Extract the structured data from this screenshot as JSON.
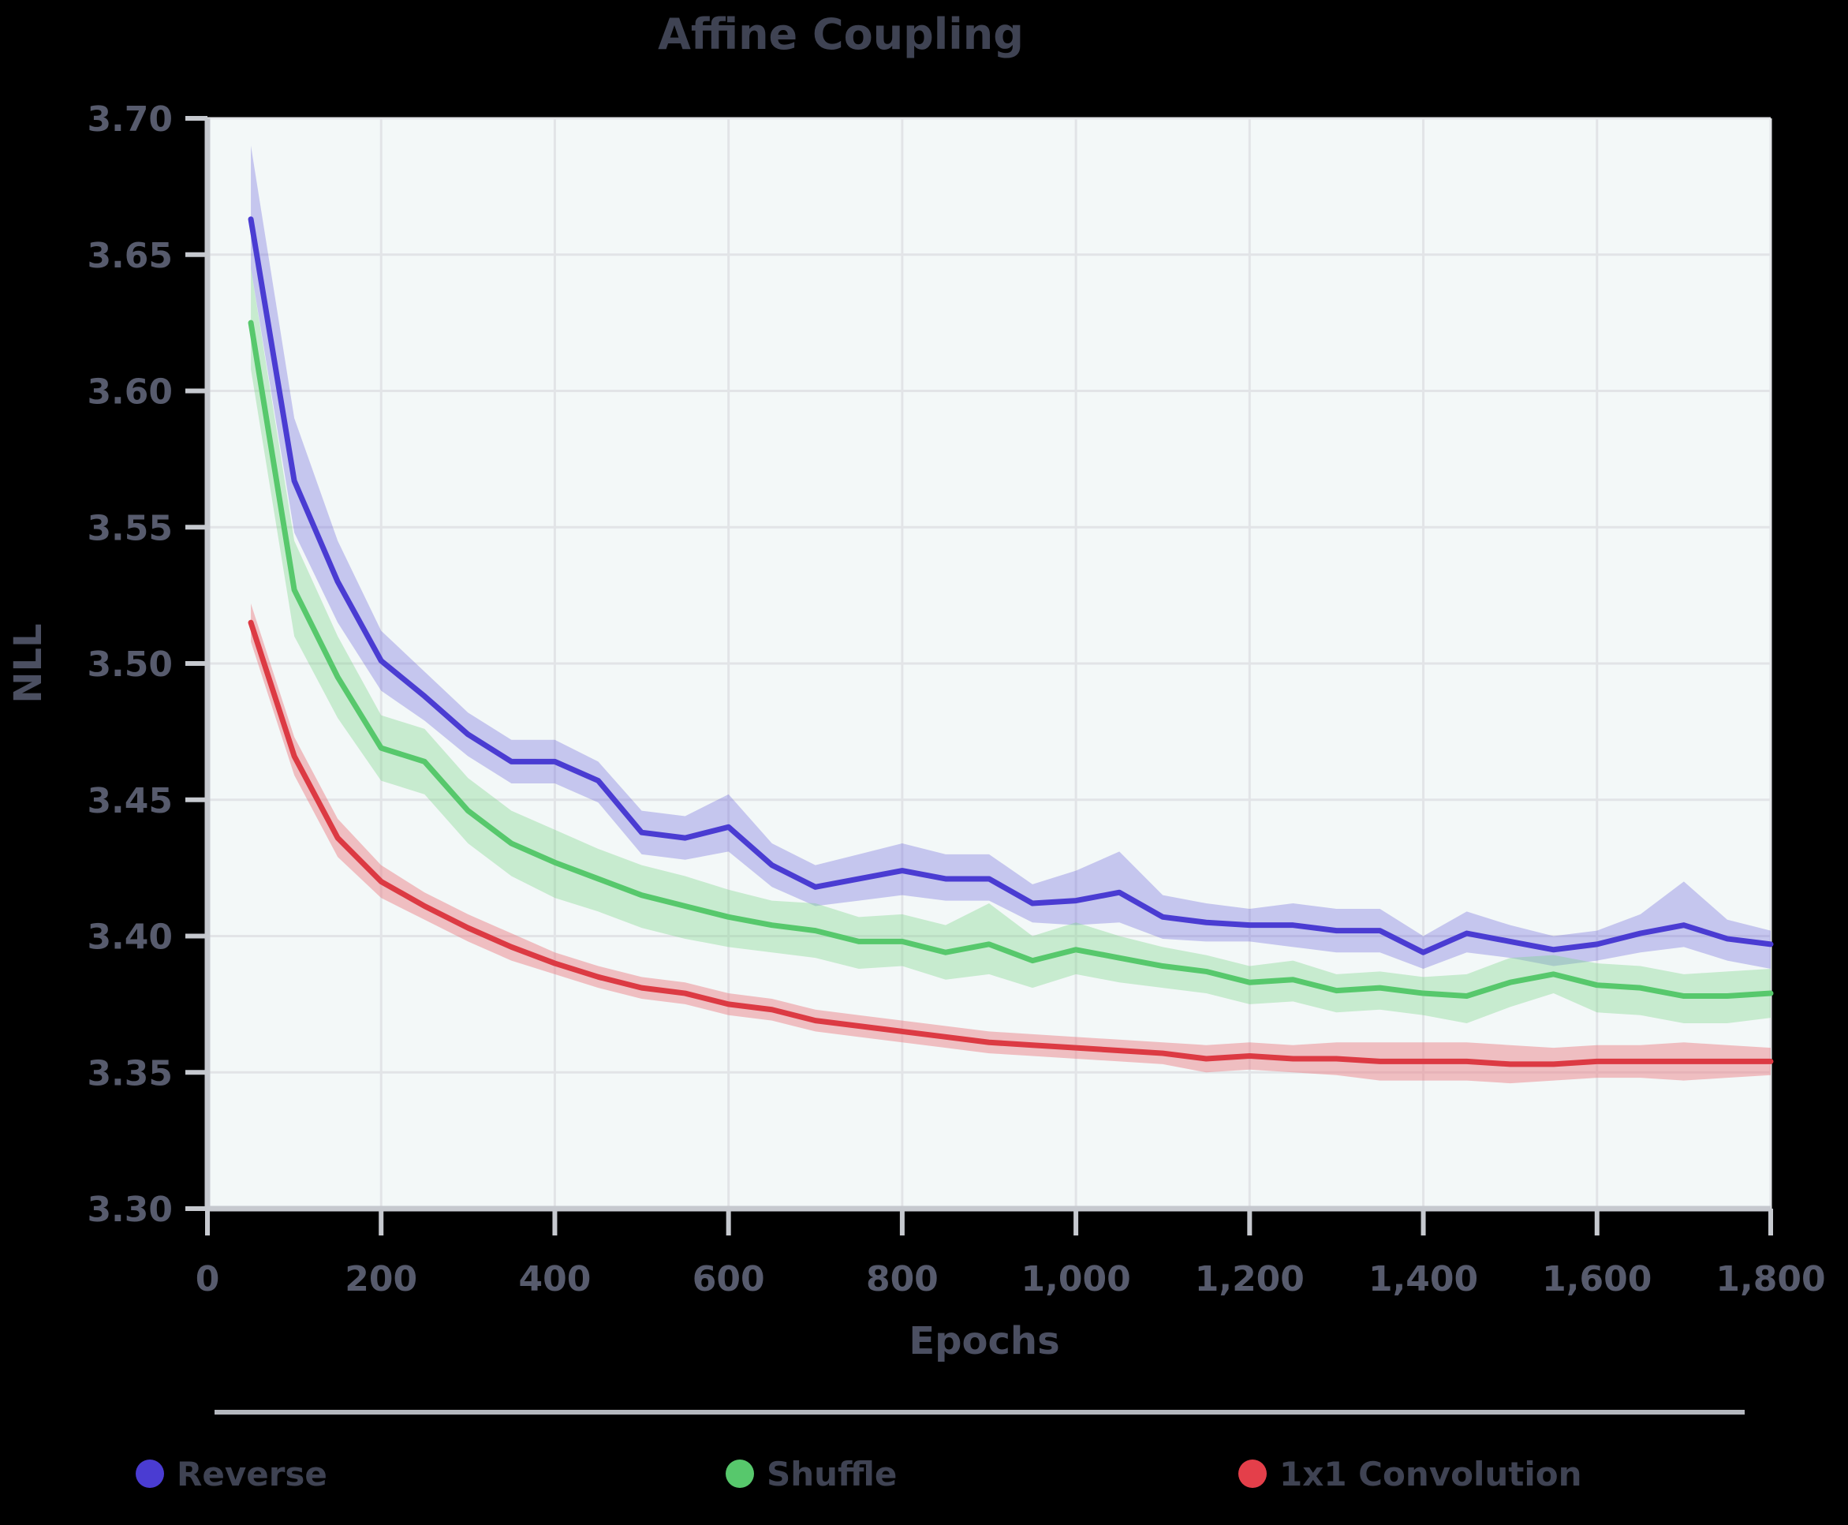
{
  "title": "Affine Coupling",
  "axes": {
    "x_label": "Epochs",
    "y_label": "NLL",
    "x_tick_labels": [
      "0",
      "200",
      "400",
      "600",
      "800",
      "1,000",
      "1,200",
      "1,400",
      "1,600",
      "1,800"
    ],
    "y_tick_labels": [
      "3.70",
      "3.65",
      "3.60",
      "3.55",
      "3.50",
      "3.45",
      "3.40",
      "3.35",
      "3.30"
    ]
  },
  "legend": {
    "items": [
      {
        "label": "Reverse",
        "color": "#4a3cd2"
      },
      {
        "label": "Shuffle",
        "color": "#57c86c"
      },
      {
        "label": "1x1 Convolution",
        "color": "#e43f4a"
      }
    ]
  },
  "colors": {
    "page_background": "#000000",
    "plot_background": "#f3f8f8",
    "gridline": "#e2e4e7",
    "spine": "#c6c9cf",
    "legend_divider": "#b5b8bf"
  },
  "chart_data": {
    "type": "line",
    "title": "Affine Coupling",
    "xlabel": "Epochs",
    "ylabel": "NLL",
    "xlim": [
      0,
      1800
    ],
    "ylim": [
      3.3,
      3.7
    ],
    "grid": true,
    "legend_position": "bottom",
    "x_tick_values": [
      0,
      200,
      400,
      600,
      800,
      1000,
      1200,
      1400,
      1600,
      1800
    ],
    "y_tick_values": [
      3.7,
      3.65,
      3.6,
      3.55,
      3.5,
      3.45,
      3.4,
      3.35,
      3.3
    ],
    "x": [
      50,
      100,
      150,
      200,
      250,
      300,
      350,
      400,
      450,
      500,
      550,
      600,
      650,
      700,
      750,
      800,
      850,
      900,
      950,
      1000,
      1050,
      1100,
      1150,
      1200,
      1250,
      1300,
      1350,
      1400,
      1450,
      1500,
      1550,
      1600,
      1650,
      1700,
      1750,
      1800
    ],
    "series": [
      {
        "name": "Reverse",
        "color": "#4a3cd2",
        "band_color": "rgba(101,92,218,0.32)",
        "values": [
          3.663,
          3.567,
          3.53,
          3.501,
          3.488,
          3.474,
          3.464,
          3.464,
          3.457,
          3.438,
          3.436,
          3.44,
          3.426,
          3.418,
          3.421,
          3.424,
          3.421,
          3.421,
          3.412,
          3.413,
          3.416,
          3.407,
          3.405,
          3.404,
          3.404,
          3.402,
          3.402,
          3.394,
          3.401,
          3.398,
          3.395,
          3.397,
          3.401,
          3.404,
          3.399,
          3.397
        ],
        "band_upper": [
          3.69,
          3.59,
          3.545,
          3.512,
          3.497,
          3.482,
          3.472,
          3.472,
          3.464,
          3.446,
          3.444,
          3.452,
          3.434,
          3.426,
          3.43,
          3.434,
          3.43,
          3.43,
          3.419,
          3.424,
          3.431,
          3.415,
          3.412,
          3.41,
          3.412,
          3.41,
          3.41,
          3.4,
          3.409,
          3.404,
          3.4,
          3.402,
          3.408,
          3.42,
          3.406,
          3.402
        ],
        "band_lower": [
          3.645,
          3.548,
          3.515,
          3.49,
          3.479,
          3.466,
          3.456,
          3.456,
          3.449,
          3.43,
          3.428,
          3.431,
          3.418,
          3.411,
          3.413,
          3.415,
          3.413,
          3.413,
          3.405,
          3.404,
          3.405,
          3.399,
          3.398,
          3.398,
          3.396,
          3.394,
          3.394,
          3.388,
          3.394,
          3.392,
          3.389,
          3.391,
          3.394,
          3.396,
          3.391,
          3.388
        ]
      },
      {
        "name": "Shuffle",
        "color": "#57c86c",
        "band_color": "rgba(118,213,133,0.35)",
        "values": [
          3.625,
          3.527,
          3.495,
          3.469,
          3.464,
          3.446,
          3.434,
          3.427,
          3.421,
          3.415,
          3.411,
          3.407,
          3.404,
          3.402,
          3.398,
          3.398,
          3.394,
          3.397,
          3.391,
          3.395,
          3.392,
          3.389,
          3.387,
          3.383,
          3.384,
          3.38,
          3.381,
          3.379,
          3.378,
          3.383,
          3.386,
          3.382,
          3.381,
          3.378,
          3.378,
          3.379
        ],
        "band_upper": [
          3.645,
          3.545,
          3.51,
          3.481,
          3.476,
          3.458,
          3.446,
          3.439,
          3.432,
          3.426,
          3.422,
          3.417,
          3.413,
          3.412,
          3.407,
          3.408,
          3.404,
          3.412,
          3.4,
          3.405,
          3.4,
          3.396,
          3.393,
          3.389,
          3.391,
          3.386,
          3.387,
          3.385,
          3.386,
          3.392,
          3.393,
          3.39,
          3.389,
          3.386,
          3.387,
          3.388
        ],
        "band_lower": [
          3.608,
          3.51,
          3.48,
          3.457,
          3.452,
          3.434,
          3.422,
          3.414,
          3.409,
          3.403,
          3.399,
          3.396,
          3.394,
          3.392,
          3.388,
          3.389,
          3.384,
          3.386,
          3.381,
          3.386,
          3.383,
          3.381,
          3.379,
          3.375,
          3.376,
          3.372,
          3.373,
          3.371,
          3.368,
          3.374,
          3.379,
          3.372,
          3.371,
          3.368,
          3.368,
          3.37
        ]
      },
      {
        "name": "1x1 Convolution",
        "color": "#dc3a43",
        "band_color": "rgba(235,120,127,0.45)",
        "values": [
          3.515,
          3.466,
          3.436,
          3.42,
          3.411,
          3.403,
          3.396,
          3.39,
          3.385,
          3.381,
          3.379,
          3.375,
          3.373,
          3.369,
          3.367,
          3.365,
          3.363,
          3.361,
          3.36,
          3.359,
          3.358,
          3.357,
          3.355,
          3.356,
          3.355,
          3.355,
          3.354,
          3.354,
          3.354,
          3.353,
          3.353,
          3.354,
          3.354,
          3.354,
          3.354,
          3.354
        ],
        "band_upper": [
          3.522,
          3.473,
          3.443,
          3.426,
          3.416,
          3.408,
          3.401,
          3.394,
          3.389,
          3.385,
          3.383,
          3.379,
          3.377,
          3.373,
          3.371,
          3.369,
          3.367,
          3.365,
          3.364,
          3.363,
          3.362,
          3.361,
          3.36,
          3.361,
          3.36,
          3.361,
          3.361,
          3.361,
          3.361,
          3.36,
          3.359,
          3.36,
          3.36,
          3.361,
          3.36,
          3.359
        ],
        "band_lower": [
          3.508,
          3.459,
          3.429,
          3.414,
          3.406,
          3.398,
          3.391,
          3.386,
          3.381,
          3.377,
          3.375,
          3.371,
          3.369,
          3.365,
          3.363,
          3.361,
          3.359,
          3.357,
          3.356,
          3.355,
          3.354,
          3.353,
          3.35,
          3.351,
          3.35,
          3.349,
          3.347,
          3.347,
          3.347,
          3.346,
          3.347,
          3.348,
          3.348,
          3.347,
          3.348,
          3.349
        ]
      }
    ]
  }
}
